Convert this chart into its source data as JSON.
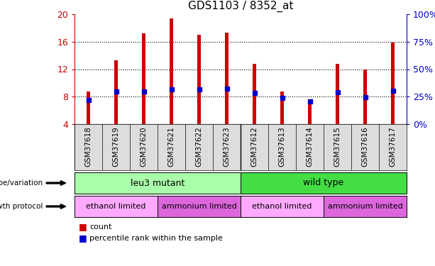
{
  "title": "GDS1103 / 8352_at",
  "samples": [
    "GSM37618",
    "GSM37619",
    "GSM37620",
    "GSM37621",
    "GSM37622",
    "GSM37623",
    "GSM37612",
    "GSM37613",
    "GSM37614",
    "GSM37615",
    "GSM37616",
    "GSM37617"
  ],
  "counts": [
    8.8,
    13.3,
    17.2,
    19.4,
    17.0,
    17.3,
    12.8,
    8.8,
    7.4,
    12.8,
    12.0,
    15.9
  ],
  "percentile_values": [
    7.5,
    8.7,
    8.7,
    9.1,
    9.1,
    9.2,
    8.5,
    7.8,
    7.3,
    8.6,
    7.9,
    8.9
  ],
  "ymin": 4,
  "ymax": 20,
  "yticks": [
    4,
    8,
    12,
    16,
    20
  ],
  "y2min": 0,
  "y2max": 100,
  "y2ticks": [
    0,
    25,
    50,
    75,
    100
  ],
  "bar_color": "#CC0000",
  "dot_color": "#0000CC",
  "bar_width": 0.15,
  "genotype_groups": [
    {
      "label": "leu3 mutant",
      "start": 0,
      "end": 6,
      "color": "#AAFFAA"
    },
    {
      "label": "wild type",
      "start": 6,
      "end": 12,
      "color": "#44DD44"
    }
  ],
  "protocol_groups": [
    {
      "label": "ethanol limited",
      "start": 0,
      "end": 3,
      "color": "#FFAAFF"
    },
    {
      "label": "ammonium limited",
      "start": 3,
      "end": 6,
      "color": "#DD66DD"
    },
    {
      "label": "ethanol limited",
      "start": 6,
      "end": 9,
      "color": "#FFAAFF"
    },
    {
      "label": "ammonium limited",
      "start": 9,
      "end": 12,
      "color": "#DD66DD"
    }
  ],
  "left_labels": [
    "genotype/variation",
    "growth protocol"
  ],
  "legend_items": [
    {
      "label": "count",
      "color": "#CC0000"
    },
    {
      "label": "percentile rank within the sample",
      "color": "#0000CC"
    }
  ],
  "tick_color_left": "#CC0000",
  "tick_color_right": "#0000CC",
  "xtick_bg": "#DDDDDD"
}
